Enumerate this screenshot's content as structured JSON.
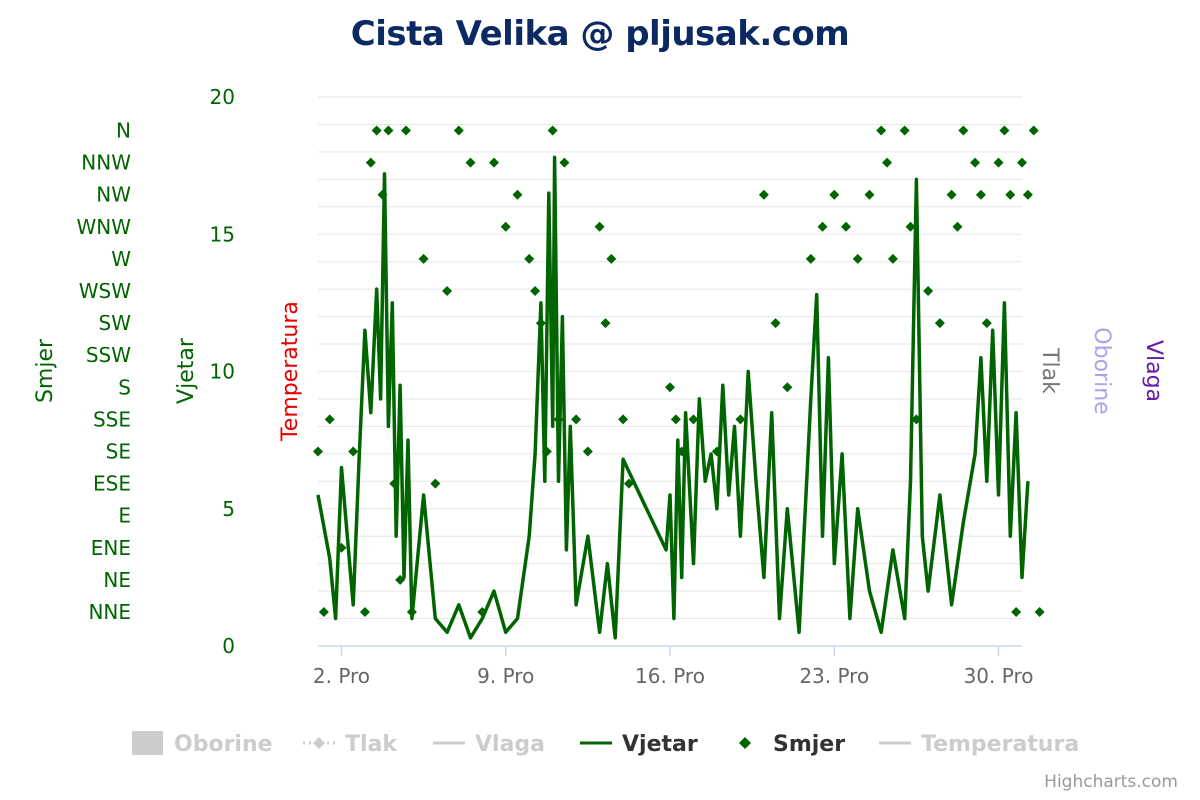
{
  "title": "Cista Velika @ pljusak.com",
  "credits": "Highcharts.com",
  "colors": {
    "green": "#006400",
    "temperatura": "#e80000",
    "tlak": "#777777",
    "oborine": "#a9a2f0",
    "vlaga": "#6a1aa8",
    "legend_inactive": "#cccccc",
    "grid": "#e6e6e6"
  },
  "axes": {
    "smjer_title": "Smjer",
    "vjetar_title": "Vjetar",
    "temperatura_title": "Temperatura",
    "tlak_title": "Tlak",
    "oborine_title": "Oborine",
    "vlaga_title": "Vlaga"
  },
  "legend": [
    {
      "name": "Oborine",
      "symbol": "box",
      "active": false
    },
    {
      "name": "Tlak",
      "symbol": "line-diamond",
      "active": false
    },
    {
      "name": "Vlaga",
      "symbol": "line",
      "active": false
    },
    {
      "name": "Vjetar",
      "symbol": "line",
      "active": true
    },
    {
      "name": "Smjer",
      "symbol": "diamond",
      "active": true
    },
    {
      "name": "Temperatura",
      "symbol": "line",
      "active": false
    }
  ],
  "chart_data": {
    "type": "line",
    "x_axis": {
      "type": "datetime",
      "range": [
        "2023-12-01",
        "2023-12-31"
      ],
      "ticks": [
        {
          "date": "2023-12-02",
          "label": "2. Pro"
        },
        {
          "date": "2023-12-09",
          "label": "9. Pro"
        },
        {
          "date": "2023-12-16",
          "label": "16. Pro"
        },
        {
          "date": "2023-12-23",
          "label": "23. Pro"
        },
        {
          "date": "2023-12-30",
          "label": "30. Pro"
        }
      ]
    },
    "y_axis_vjetar": {
      "min": 0,
      "max": 20,
      "ticks": [
        0,
        5,
        10,
        15,
        20
      ],
      "grid": true
    },
    "y_axis_smjer": {
      "categories": [
        "NNE",
        "NE",
        "ENE",
        "E",
        "ESE",
        "SE",
        "SSE",
        "S",
        "SSW",
        "SW",
        "WSW",
        "W",
        "WNW",
        "NW",
        "NNW",
        "N"
      ]
    },
    "series": [
      {
        "name": "Vjetar",
        "axis": "vjetar",
        "style": "line",
        "points": [
          [
            "2023-12-01",
            5.5
          ],
          [
            "2023-12-01 12:00",
            3.2
          ],
          [
            "2023-12-01 18:00",
            1.0
          ],
          [
            "2023-12-02",
            6.5
          ],
          [
            "2023-12-02 06:00",
            4.0
          ],
          [
            "2023-12-02 12:00",
            1.5
          ],
          [
            "2023-12-02 18:00",
            6.8
          ],
          [
            "2023-12-03",
            11.5
          ],
          [
            "2023-12-03 06:00",
            8.5
          ],
          [
            "2023-12-03 12:00",
            13.0
          ],
          [
            "2023-12-03 16:00",
            9.0
          ],
          [
            "2023-12-03 20:00",
            17.2
          ],
          [
            "2023-12-04",
            8.0
          ],
          [
            "2023-12-04 04:00",
            12.5
          ],
          [
            "2023-12-04 08:00",
            4.0
          ],
          [
            "2023-12-04 12:00",
            9.5
          ],
          [
            "2023-12-04 16:00",
            2.5
          ],
          [
            "2023-12-04 20:00",
            7.5
          ],
          [
            "2023-12-05",
            1.0
          ],
          [
            "2023-12-05 12:00",
            5.5
          ],
          [
            "2023-12-06",
            1.0
          ],
          [
            "2023-12-06 12:00",
            0.5
          ],
          [
            "2023-12-07",
            1.5
          ],
          [
            "2023-12-07 12:00",
            0.3
          ],
          [
            "2023-12-08",
            1.0
          ],
          [
            "2023-12-08 12:00",
            2.0
          ],
          [
            "2023-12-09",
            0.5
          ],
          [
            "2023-12-09 12:00",
            1.0
          ],
          [
            "2023-12-10",
            4.0
          ],
          [
            "2023-12-10 06:00",
            7.0
          ],
          [
            "2023-12-10 12:00",
            12.5
          ],
          [
            "2023-12-10 16:00",
            6.0
          ],
          [
            "2023-12-10 20:00",
            16.5
          ],
          [
            "2023-12-11",
            8.0
          ],
          [
            "2023-12-11 02:00",
            17.8
          ],
          [
            "2023-12-11 06:00",
            6.0
          ],
          [
            "2023-12-11 10:00",
            12.0
          ],
          [
            "2023-12-11 14:00",
            3.5
          ],
          [
            "2023-12-11 18:00",
            8.0
          ],
          [
            "2023-12-12",
            1.5
          ],
          [
            "2023-12-12 12:00",
            4.0
          ],
          [
            "2023-12-13",
            0.5
          ],
          [
            "2023-12-13 08:00",
            3.0
          ],
          [
            "2023-12-13 16:00",
            0.3
          ],
          [
            "2023-12-14",
            6.8
          ],
          [
            "2023-12-15",
            5.0
          ],
          [
            "2023-12-15 20:00",
            3.5
          ],
          [
            "2023-12-16",
            5.5
          ],
          [
            "2023-12-16 04:00",
            1.0
          ],
          [
            "2023-12-16 08:00",
            7.5
          ],
          [
            "2023-12-16 12:00",
            2.5
          ],
          [
            "2023-12-16 16:00",
            8.5
          ],
          [
            "2023-12-17",
            3.0
          ],
          [
            "2023-12-17 06:00",
            9.0
          ],
          [
            "2023-12-17 12:00",
            6.0
          ],
          [
            "2023-12-17 18:00",
            7.0
          ],
          [
            "2023-12-18",
            5.0
          ],
          [
            "2023-12-18 06:00",
            9.5
          ],
          [
            "2023-12-18 12:00",
            5.5
          ],
          [
            "2023-12-18 18:00",
            8.0
          ],
          [
            "2023-12-19",
            4.0
          ],
          [
            "2023-12-19 08:00",
            10.0
          ],
          [
            "2023-12-19 16:00",
            6.0
          ],
          [
            "2023-12-20",
            2.5
          ],
          [
            "2023-12-20 08:00",
            8.5
          ],
          [
            "2023-12-20 16:00",
            1.0
          ],
          [
            "2023-12-21",
            5.0
          ],
          [
            "2023-12-21 12:00",
            0.5
          ],
          [
            "2023-12-22",
            9.0
          ],
          [
            "2023-12-22 06:00",
            12.8
          ],
          [
            "2023-12-22 12:00",
            4.0
          ],
          [
            "2023-12-22 18:00",
            10.5
          ],
          [
            "2023-12-23",
            3.0
          ],
          [
            "2023-12-23 08:00",
            7.0
          ],
          [
            "2023-12-23 16:00",
            1.0
          ],
          [
            "2023-12-24",
            5.0
          ],
          [
            "2023-12-24 12:00",
            2.0
          ],
          [
            "2023-12-25",
            0.5
          ],
          [
            "2023-12-25 12:00",
            3.5
          ],
          [
            "2023-12-26",
            1.0
          ],
          [
            "2023-12-26 06:00",
            6.0
          ],
          [
            "2023-12-26 12:00",
            17.0
          ],
          [
            "2023-12-26 18:00",
            4.0
          ],
          [
            "2023-12-27",
            2.0
          ],
          [
            "2023-12-27 12:00",
            5.5
          ],
          [
            "2023-12-28",
            1.5
          ],
          [
            "2023-12-28 12:00",
            4.5
          ],
          [
            "2023-12-29",
            7.0
          ],
          [
            "2023-12-29 06:00",
            10.5
          ],
          [
            "2023-12-29 12:00",
            6.0
          ],
          [
            "2023-12-29 18:00",
            11.5
          ],
          [
            "2023-12-30",
            5.5
          ],
          [
            "2023-12-30 06:00",
            12.5
          ],
          [
            "2023-12-30 12:00",
            4.0
          ],
          [
            "2023-12-30 18:00",
            8.5
          ],
          [
            "2023-12-31",
            2.5
          ],
          [
            "2023-12-31 06:00",
            6.0
          ]
        ]
      },
      {
        "name": "Smjer",
        "axis": "smjer",
        "style": "diamond",
        "points": [
          [
            "2023-12-01",
            "SE"
          ],
          [
            "2023-12-01 06:00",
            "NNE"
          ],
          [
            "2023-12-01 12:00",
            "SSE"
          ],
          [
            "2023-12-02",
            "ENE"
          ],
          [
            "2023-12-02 12:00",
            "SE"
          ],
          [
            "2023-12-03",
            "NNE"
          ],
          [
            "2023-12-03 06:00",
            "NNW"
          ],
          [
            "2023-12-03 12:00",
            "N"
          ],
          [
            "2023-12-03 18:00",
            "NW"
          ],
          [
            "2023-12-04",
            "N"
          ],
          [
            "2023-12-04 06:00",
            "ESE"
          ],
          [
            "2023-12-04 12:00",
            "NE"
          ],
          [
            "2023-12-04 18:00",
            "N"
          ],
          [
            "2023-12-05",
            "NNE"
          ],
          [
            "2023-12-05 12:00",
            "W"
          ],
          [
            "2023-12-06",
            "ESE"
          ],
          [
            "2023-12-06 12:00",
            "WSW"
          ],
          [
            "2023-12-07",
            "N"
          ],
          [
            "2023-12-07 12:00",
            "NNW"
          ],
          [
            "2023-12-08",
            "NNE"
          ],
          [
            "2023-12-08 12:00",
            "NNW"
          ],
          [
            "2023-12-09",
            "WNW"
          ],
          [
            "2023-12-09 12:00",
            "NW"
          ],
          [
            "2023-12-10",
            "W"
          ],
          [
            "2023-12-10 06:00",
            "WSW"
          ],
          [
            "2023-12-10 12:00",
            "SW"
          ],
          [
            "2023-12-10 18:00",
            "SE"
          ],
          [
            "2023-12-11",
            "N"
          ],
          [
            "2023-12-11 06:00",
            "SSE"
          ],
          [
            "2023-12-11 12:00",
            "NNW"
          ],
          [
            "2023-12-12",
            "SSE"
          ],
          [
            "2023-12-12 12:00",
            "SE"
          ],
          [
            "2023-12-13",
            "WNW"
          ],
          [
            "2023-12-13 06:00",
            "SW"
          ],
          [
            "2023-12-13 12:00",
            "W"
          ],
          [
            "2023-12-14",
            "SSE"
          ],
          [
            "2023-12-14 06:00",
            "ESE"
          ],
          [
            "2023-12-16",
            "S"
          ],
          [
            "2023-12-16 06:00",
            "SSE"
          ],
          [
            "2023-12-16 12:00",
            "SE"
          ],
          [
            "2023-12-17",
            "SSE"
          ],
          [
            "2023-12-18",
            "SE"
          ],
          [
            "2023-12-19",
            "SSE"
          ],
          [
            "2023-12-20",
            "NW"
          ],
          [
            "2023-12-20 12:00",
            "SW"
          ],
          [
            "2023-12-21",
            "S"
          ],
          [
            "2023-12-22",
            "W"
          ],
          [
            "2023-12-22 12:00",
            "WNW"
          ],
          [
            "2023-12-23",
            "NW"
          ],
          [
            "2023-12-23 12:00",
            "WNW"
          ],
          [
            "2023-12-24",
            "W"
          ],
          [
            "2023-12-24 12:00",
            "NW"
          ],
          [
            "2023-12-25",
            "N"
          ],
          [
            "2023-12-25 06:00",
            "NNW"
          ],
          [
            "2023-12-25 12:00",
            "W"
          ],
          [
            "2023-12-26",
            "N"
          ],
          [
            "2023-12-26 06:00",
            "WNW"
          ],
          [
            "2023-12-26 12:00",
            "SSE"
          ],
          [
            "2023-12-27",
            "WSW"
          ],
          [
            "2023-12-27 12:00",
            "SW"
          ],
          [
            "2023-12-28",
            "NW"
          ],
          [
            "2023-12-28 06:00",
            "WNW"
          ],
          [
            "2023-12-28 12:00",
            "N"
          ],
          [
            "2023-12-29",
            "NNW"
          ],
          [
            "2023-12-29 06:00",
            "NW"
          ],
          [
            "2023-12-29 12:00",
            "SW"
          ],
          [
            "2023-12-30",
            "NNW"
          ],
          [
            "2023-12-30 06:00",
            "N"
          ],
          [
            "2023-12-30 12:00",
            "NW"
          ],
          [
            "2023-12-30 18:00",
            "NNE"
          ],
          [
            "2023-12-31",
            "NNW"
          ],
          [
            "2023-12-31 06:00",
            "NW"
          ],
          [
            "2023-12-31 12:00",
            "N"
          ],
          [
            "2023-12-31 18:00",
            "NNE"
          ]
        ]
      }
    ]
  }
}
